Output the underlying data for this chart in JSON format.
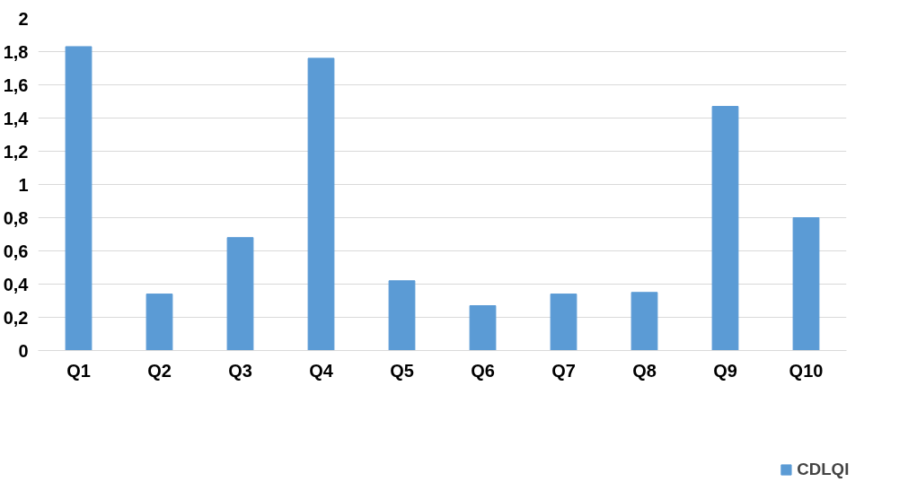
{
  "chart_data": {
    "type": "bar",
    "categories": [
      "Q1",
      "Q2",
      "Q3",
      "Q4",
      "Q5",
      "Q6",
      "Q7",
      "Q8",
      "Q9",
      "Q10"
    ],
    "series": [
      {
        "name": "CDLQI",
        "color": "#5b9bd5",
        "values": [
          1.83,
          0.34,
          0.68,
          1.76,
          0.42,
          0.27,
          0.34,
          0.35,
          1.47,
          0.8
        ]
      }
    ],
    "ylim": [
      0,
      2
    ],
    "yticks": [
      0,
      {
        "value": 0.2,
        "label": "0,2"
      },
      {
        "value": 0.4,
        "label": "0,4"
      },
      {
        "value": 0.6,
        "label": "0,6"
      },
      {
        "value": 0.8,
        "label": "0,8"
      },
      1,
      {
        "value": 1.2,
        "label": "1,2"
      },
      {
        "value": 1.4,
        "label": "1,4"
      },
      {
        "value": 1.6,
        "label": "1,6"
      },
      {
        "value": 1.8,
        "label": "1,8"
      },
      2
    ],
    "grid": "y",
    "legend": "bottom"
  }
}
